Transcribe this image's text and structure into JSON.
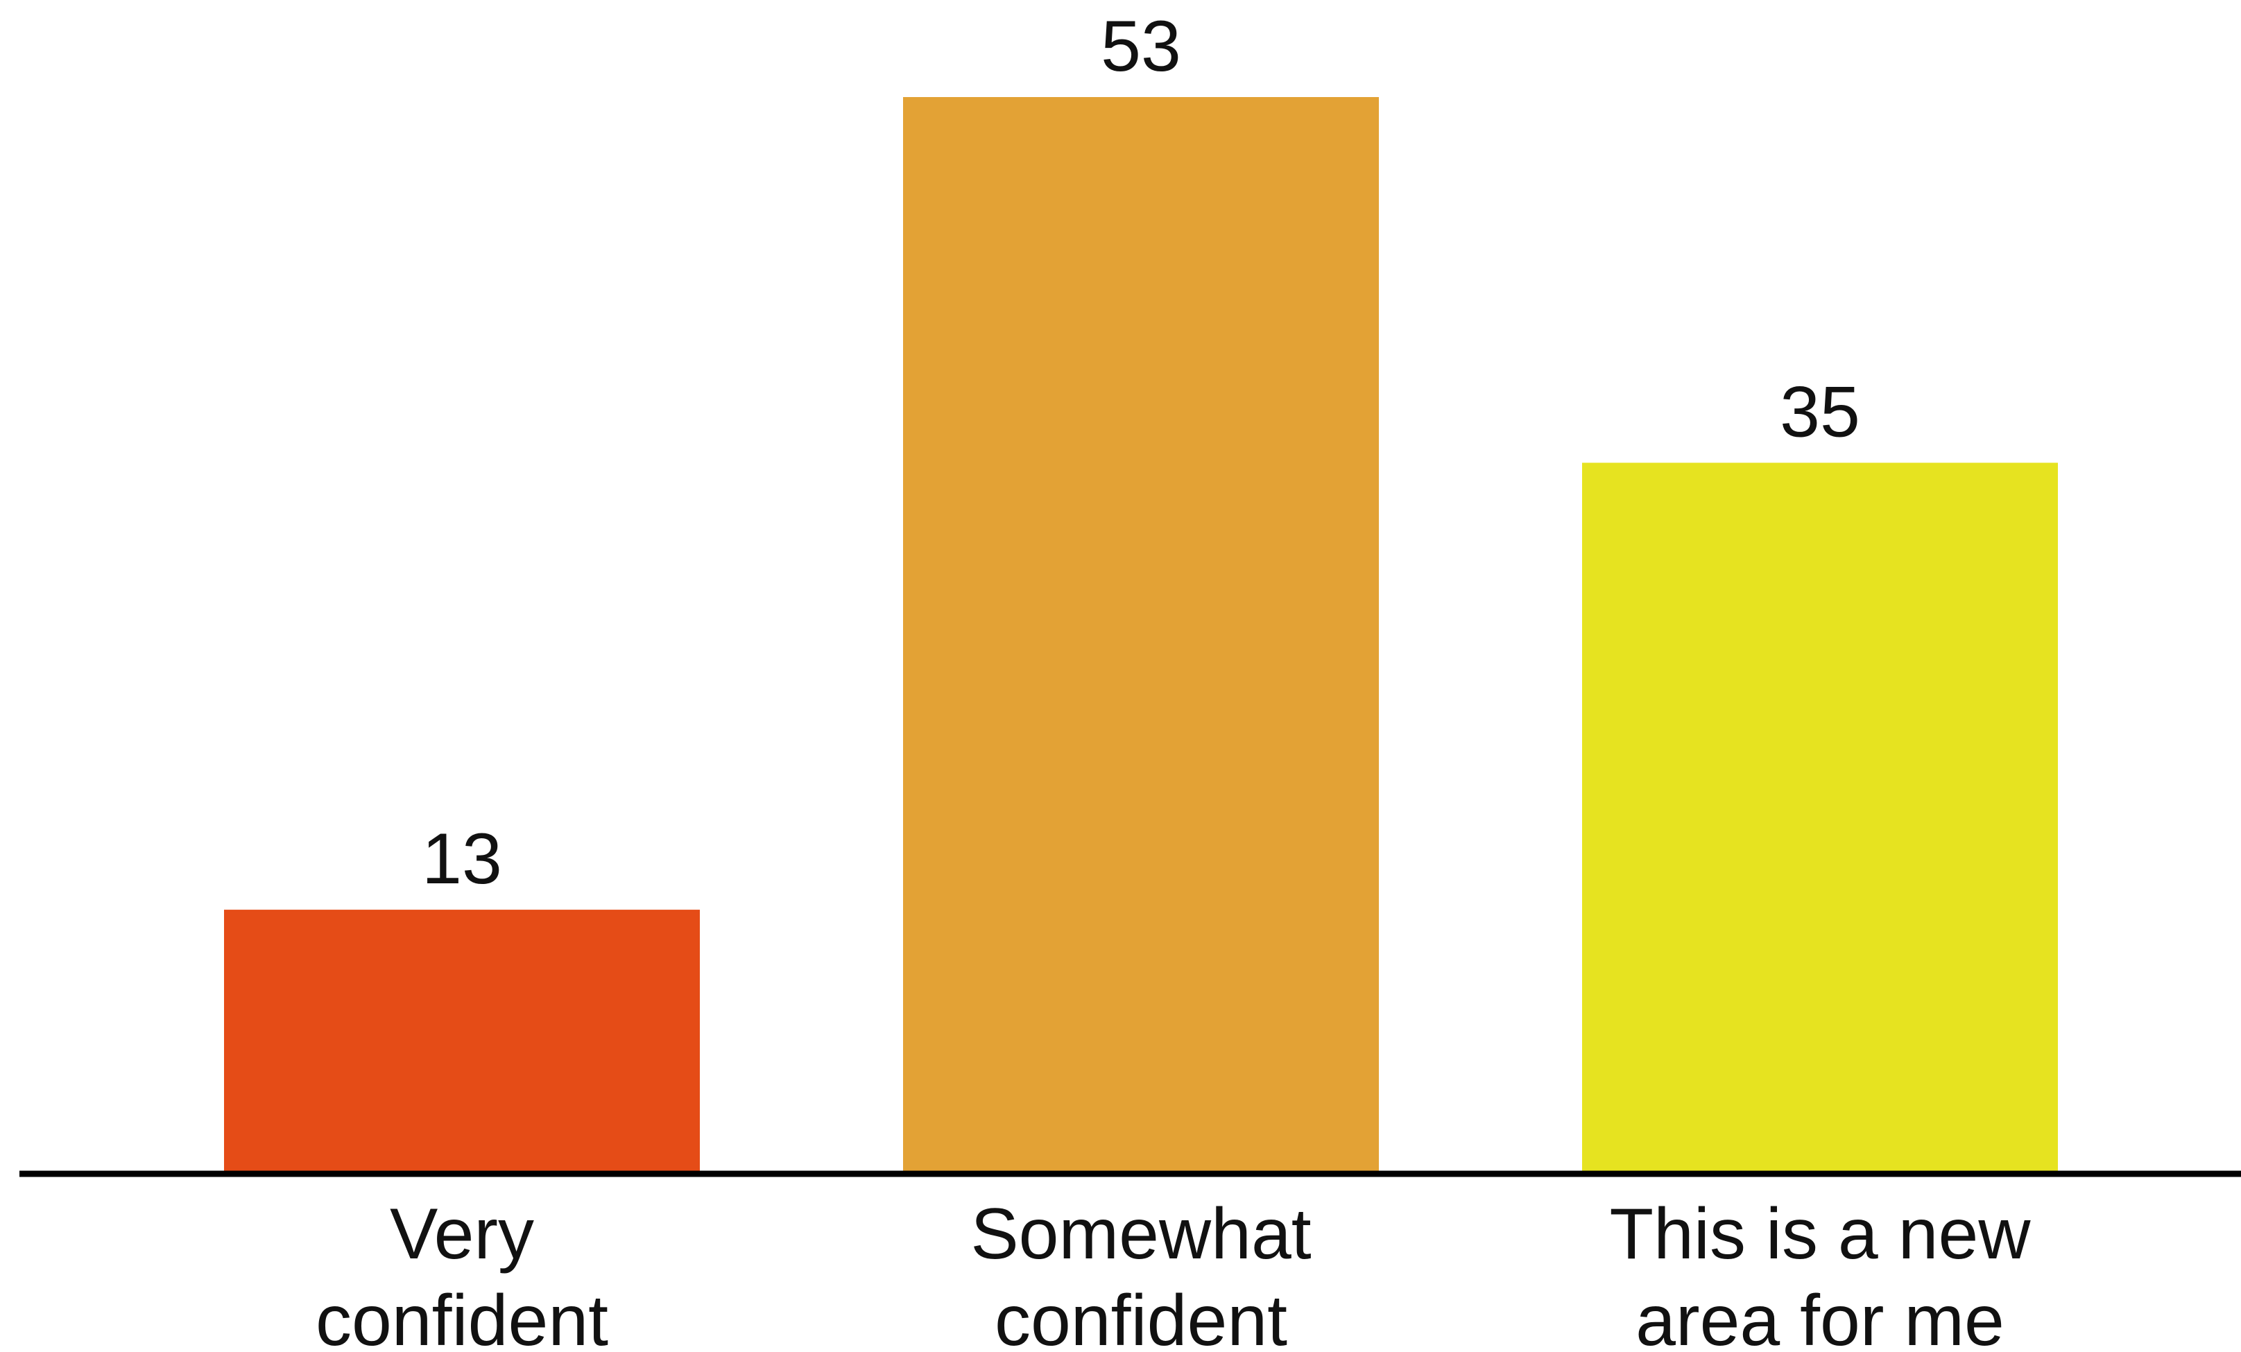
{
  "chart_data": {
    "type": "bar",
    "categories": [
      [
        "Very",
        "confident"
      ],
      [
        "Somewhat",
        "confident"
      ],
      [
        "This is a new",
        "area for me"
      ]
    ],
    "values": [
      13,
      53,
      35
    ],
    "value_labels": [
      "13",
      "53",
      "35"
    ],
    "colors": [
      "#e54c17",
      "#e3a235",
      "#e6e320"
    ],
    "axis_color": "#000000",
    "ylim": [
      0,
      53
    ],
    "grid": false,
    "legend": "none",
    "title": "",
    "xlabel": "",
    "ylabel": ""
  }
}
